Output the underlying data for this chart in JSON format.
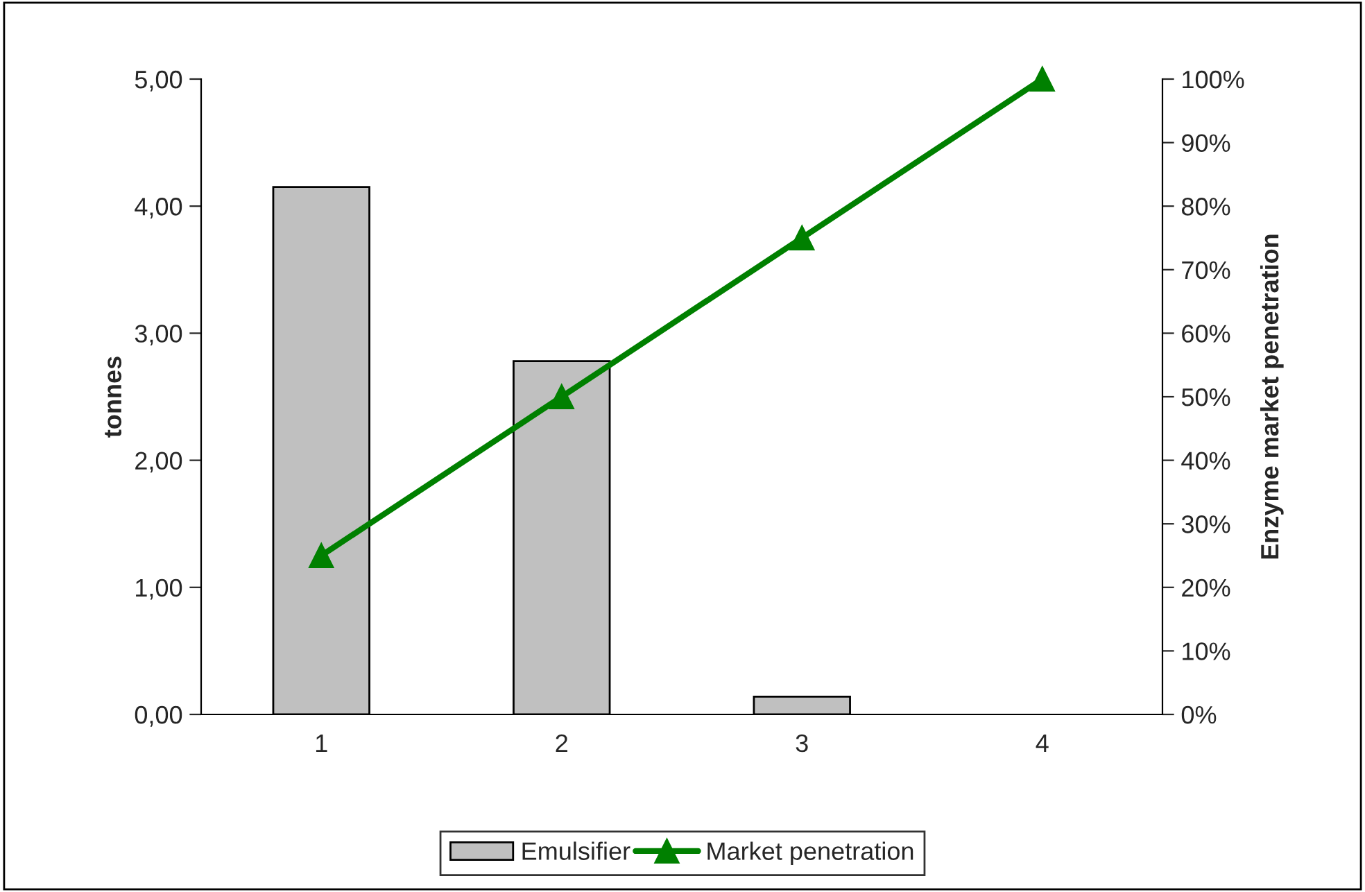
{
  "chart_data": {
    "type": "bar",
    "categories": [
      "1",
      "2",
      "3",
      "4"
    ],
    "ylabel": "tonnes",
    "y2label": "Enzyme market penetration",
    "series": [
      {
        "name": "Emulsifier",
        "color": "#c0c0c0",
        "values": [
          4.15,
          2.78,
          0.14,
          null
        ]
      },
      {
        "name": "Market penetration",
        "type": "line",
        "axis": "y2",
        "color": "#008000",
        "marker": "triangle",
        "line_style": "solid",
        "values": [
          25,
          50,
          75,
          100
        ]
      }
    ],
    "ylim": [
      0,
      5
    ],
    "yticks": [
      {
        "value": 0,
        "label": "0,00"
      },
      {
        "value": 1,
        "label": "1,00"
      },
      {
        "value": 2,
        "label": "2,00"
      },
      {
        "value": 3,
        "label": "3,00"
      },
      {
        "value": 4,
        "label": "4,00"
      },
      {
        "value": 5,
        "label": "5,00"
      }
    ],
    "y2lim": [
      0,
      100
    ],
    "y2ticks": [
      {
        "value": 0,
        "label": "0%"
      },
      {
        "value": 10,
        "label": "10%"
      },
      {
        "value": 20,
        "label": "20%"
      },
      {
        "value": 30,
        "label": "30%"
      },
      {
        "value": 40,
        "label": "40%"
      },
      {
        "value": 50,
        "label": "50%"
      },
      {
        "value": 60,
        "label": "60%"
      },
      {
        "value": 70,
        "label": "70%"
      },
      {
        "value": 80,
        "label": "80%"
      },
      {
        "value": 90,
        "label": "90%"
      },
      {
        "value": 100,
        "label": "100%"
      }
    ],
    "grid": false,
    "legend": "bottom"
  }
}
